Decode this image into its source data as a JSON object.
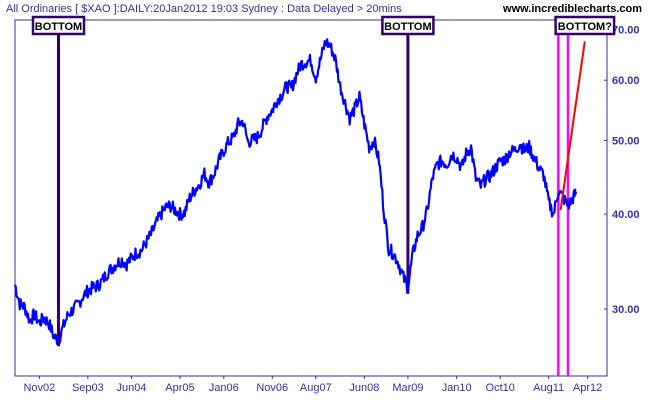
{
  "header": {
    "title": "All Ordinaries [ $XAO ]:DAILY:20Jan2012 19:03 Sydney : Data Delayed > 20mins",
    "site": "www.incrediblecharts.com"
  },
  "colors": {
    "price_line": "#0000ff",
    "bottom_line": "#330066",
    "label_border": "#330066",
    "label_fill": "#ffffff",
    "magenta_line": "#ff00ff",
    "projection_line": "#ff0000",
    "axis": "#333399"
  },
  "chart_data": {
    "type": "line",
    "title": "All Ordinaries [ $XAO ]:DAILY:20Jan2012 19:03 Sydney : Data Delayed > 20mins",
    "y_scale": "log",
    "ylim": [
      2450,
      7200
    ],
    "xlim": [
      "2002-06-01",
      "2012-08-01"
    ],
    "y_ticks": [
      {
        "value": 3000,
        "label": "30.00"
      },
      {
        "value": 4000,
        "label": "40.00"
      },
      {
        "value": 5000,
        "label": "50.00"
      },
      {
        "value": 6000,
        "label": "60.00"
      },
      {
        "value": 7000,
        "label": "70.00"
      }
    ],
    "x_ticks": [
      {
        "date": "2002-11-01",
        "label": "Nov02"
      },
      {
        "date": "2003-09-01",
        "label": "Sep03"
      },
      {
        "date": "2004-06-01",
        "label": "Jun04"
      },
      {
        "date": "2005-04-01",
        "label": "Apr05"
      },
      {
        "date": "2006-01-01",
        "label": "Jan06"
      },
      {
        "date": "2006-11-01",
        "label": "Nov06"
      },
      {
        "date": "2007-08-01",
        "label": "Aug07"
      },
      {
        "date": "2008-06-01",
        "label": "Jun08"
      },
      {
        "date": "2009-03-01",
        "label": "Mar09"
      },
      {
        "date": "2010-01-01",
        "label": "Jan10"
      },
      {
        "date": "2010-10-01",
        "label": "Oct10"
      },
      {
        "date": "2011-08-01",
        "label": "Aug11"
      },
      {
        "date": "2012-04-01",
        "label": "Apr12"
      }
    ],
    "series": [
      {
        "points": [
          [
            "2002-06-01",
            3230
          ],
          [
            "2002-07-01",
            3050
          ],
          [
            "2002-08-01",
            3020
          ],
          [
            "2002-09-01",
            2900
          ],
          [
            "2002-10-01",
            2950
          ],
          [
            "2002-11-01",
            2880
          ],
          [
            "2002-12-01",
            2920
          ],
          [
            "2003-01-01",
            2870
          ],
          [
            "2003-02-01",
            2760
          ],
          [
            "2003-03-01",
            2730
          ],
          [
            "2003-04-01",
            2850
          ],
          [
            "2003-05-01",
            2950
          ],
          [
            "2003-06-01",
            3000
          ],
          [
            "2003-07-01",
            3040
          ],
          [
            "2003-08-01",
            3120
          ],
          [
            "2003-09-01",
            3170
          ],
          [
            "2003-10-01",
            3200
          ],
          [
            "2003-11-01",
            3220
          ],
          [
            "2003-12-01",
            3270
          ],
          [
            "2004-01-01",
            3350
          ],
          [
            "2004-02-01",
            3400
          ],
          [
            "2004-03-01",
            3450
          ],
          [
            "2004-04-01",
            3480
          ],
          [
            "2004-05-01",
            3440
          ],
          [
            "2004-06-01",
            3500
          ],
          [
            "2004-07-01",
            3560
          ],
          [
            "2004-08-01",
            3580
          ],
          [
            "2004-09-01",
            3670
          ],
          [
            "2004-10-01",
            3760
          ],
          [
            "2004-11-01",
            3880
          ],
          [
            "2004-12-01",
            3990
          ],
          [
            "2005-01-01",
            4080
          ],
          [
            "2005-02-01",
            4100
          ],
          [
            "2005-03-01",
            4050
          ],
          [
            "2005-04-01",
            4000
          ],
          [
            "2005-05-01",
            4020
          ],
          [
            "2005-06-01",
            4200
          ],
          [
            "2005-07-01",
            4300
          ],
          [
            "2005-08-01",
            4380
          ],
          [
            "2005-09-01",
            4520
          ],
          [
            "2005-10-01",
            4400
          ],
          [
            "2005-11-01",
            4520
          ],
          [
            "2005-12-01",
            4700
          ],
          [
            "2006-01-01",
            4850
          ],
          [
            "2006-02-01",
            4980
          ],
          [
            "2006-03-01",
            5040
          ],
          [
            "2006-04-01",
            5250
          ],
          [
            "2006-05-01",
            5300
          ],
          [
            "2006-06-01",
            4980
          ],
          [
            "2006-07-01",
            5000
          ],
          [
            "2006-08-01",
            5050
          ],
          [
            "2006-09-01",
            5200
          ],
          [
            "2006-10-01",
            5380
          ],
          [
            "2006-11-01",
            5480
          ],
          [
            "2006-12-01",
            5650
          ],
          [
            "2007-01-01",
            5750
          ],
          [
            "2007-02-01",
            5900
          ],
          [
            "2007-03-01",
            5850
          ],
          [
            "2007-04-01",
            6100
          ],
          [
            "2007-05-01",
            6300
          ],
          [
            "2007-06-01",
            6350
          ],
          [
            "2007-07-01",
            6370
          ],
          [
            "2007-08-01",
            6050
          ],
          [
            "2007-09-01",
            6400
          ],
          [
            "2007-10-01",
            6750
          ],
          [
            "2007-11-01",
            6650
          ],
          [
            "2007-12-01",
            6400
          ],
          [
            "2008-01-01",
            5900
          ],
          [
            "2008-02-01",
            5600
          ],
          [
            "2008-03-01",
            5350
          ],
          [
            "2008-04-01",
            5500
          ],
          [
            "2008-05-01",
            5700
          ],
          [
            "2008-06-01",
            5250
          ],
          [
            "2008-07-01",
            4900
          ],
          [
            "2008-08-01",
            5000
          ],
          [
            "2008-09-01",
            4700
          ],
          [
            "2008-10-01",
            4050
          ],
          [
            "2008-11-01",
            3600
          ],
          [
            "2008-12-01",
            3550
          ],
          [
            "2009-01-01",
            3450
          ],
          [
            "2009-02-01",
            3300
          ],
          [
            "2009-03-01",
            3200
          ],
          [
            "2009-04-01",
            3550
          ],
          [
            "2009-05-01",
            3750
          ],
          [
            "2009-06-01",
            3850
          ],
          [
            "2009-07-01",
            4050
          ],
          [
            "2009-08-01",
            4450
          ],
          [
            "2009-09-01",
            4650
          ],
          [
            "2009-10-01",
            4700
          ],
          [
            "2009-11-01",
            4650
          ],
          [
            "2009-12-01",
            4800
          ],
          [
            "2010-01-01",
            4750
          ],
          [
            "2010-02-01",
            4600
          ],
          [
            "2010-03-01",
            4800
          ],
          [
            "2010-04-01",
            4900
          ],
          [
            "2010-05-01",
            4450
          ],
          [
            "2010-06-01",
            4350
          ],
          [
            "2010-07-01",
            4450
          ],
          [
            "2010-08-01",
            4500
          ],
          [
            "2010-09-01",
            4600
          ],
          [
            "2010-10-01",
            4700
          ],
          [
            "2010-11-01",
            4720
          ],
          [
            "2010-12-01",
            4830
          ],
          [
            "2011-01-01",
            4850
          ],
          [
            "2011-02-01",
            4950
          ],
          [
            "2011-03-01",
            4850
          ],
          [
            "2011-04-01",
            4900
          ],
          [
            "2011-05-01",
            4750
          ],
          [
            "2011-06-01",
            4600
          ],
          [
            "2011-07-01",
            4500
          ],
          [
            "2011-08-01",
            4150
          ],
          [
            "2011-09-01",
            4000
          ],
          [
            "2011-10-01",
            4300
          ],
          [
            "2011-11-01",
            4200
          ],
          [
            "2011-12-01",
            4100
          ],
          [
            "2012-01-01",
            4200
          ],
          [
            "2012-01-20",
            4280
          ]
        ]
      }
    ],
    "annotations": [
      {
        "label": "BOTTOM",
        "date": "2003-03-01",
        "value": 2730
      },
      {
        "label": "BOTTOM",
        "date": "2009-03-01",
        "value": 3200
      },
      {
        "label": "BOTTOM?",
        "date": "2012-03-15",
        "value": 7000
      }
    ],
    "vertical_markers": [
      "2011-10-01",
      "2011-12-01"
    ],
    "projection_line": {
      "from": [
        "2011-10-15",
        4050
      ],
      "to": [
        "2012-03-15",
        7000
      ]
    }
  }
}
